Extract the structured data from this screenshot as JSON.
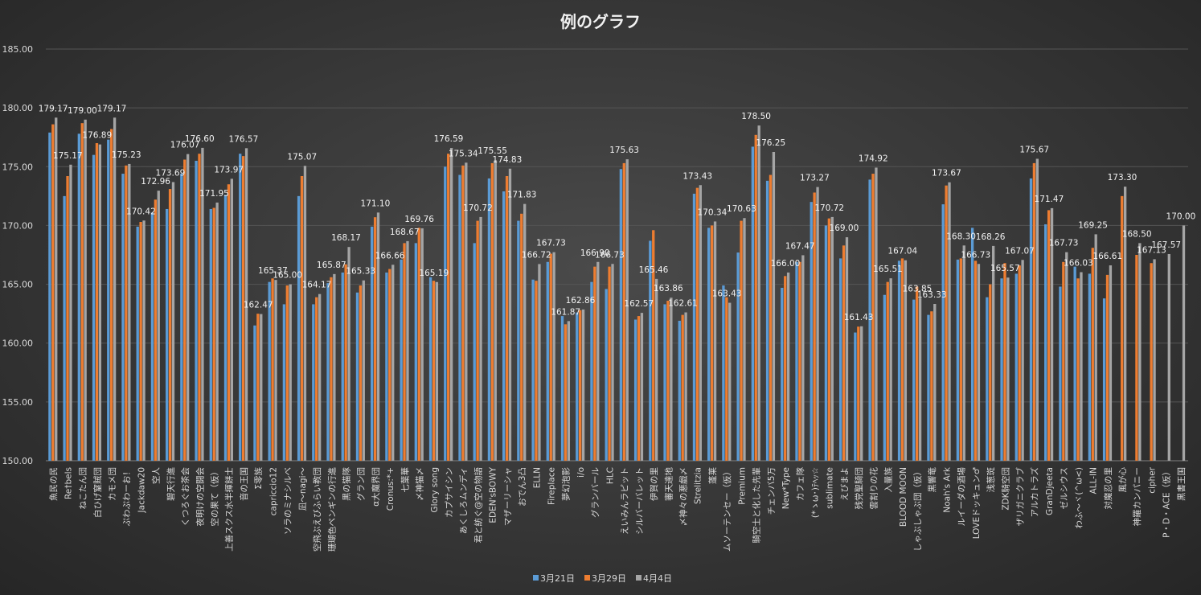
{
  "chart_data": {
    "type": "bar",
    "title": "例のグラフ",
    "xlabel": "",
    "ylabel": "",
    "ylim": [
      150,
      185
    ],
    "yticks": [
      "150.00",
      "155.00",
      "160.00",
      "165.00",
      "170.00",
      "175.00",
      "180.00",
      "185.00"
    ],
    "grid": true,
    "legend_position": "bottom",
    "colors": [
      "#5b9bd5",
      "#ed7d31",
      "#a5a5a5"
    ],
    "categories": [
      "魚民の民",
      "Re†bels",
      "ねこたん団",
      "白ひげ窒賊団",
      "カモメ団",
      "ぷわぷわーお！",
      "Jackdaw20",
      "空人",
      "碧天行進",
      "くつろぐお茶会",
      "夜明けの空闘会",
      "空の果て（仮）",
      "上善スクス水半揮餅士",
      "音の王国",
      "Σ零族",
      "capriccio12",
      "ソラのミナシルベ",
      "凪～nagi～",
      "空飛ぶえびふらい教団",
      "珊瑚色ペンギンの行進",
      "黒の猫隊",
      "グラン団",
      "α大魔界団",
      "Cronus:*+",
      "七葉華",
      "〆神猫〆",
      "Glory song",
      "カプサイシン",
      "あくしろムンディ",
      "君と紡ぐ@空の物語",
      "EDEN'sBOWY",
      "マザーリーシャ",
      "おでん3凸",
      "ELLN",
      "Fireplace",
      "夢幻泡影",
      "i/o",
      "グランバール",
      "HLC",
      "えいみんラピット",
      "シルバーバレット",
      "伊賀の里",
      "審天達地",
      "〆神々の悪戯〆",
      "Strelitzia",
      "蓬莱",
      "ムソーテンセー（仮）",
      "Premium",
      "騎空士と化した先輩",
      "チェンバ5万",
      "New*Type",
      "カフェ隊",
      "(*ゝω･)ﾃﾍｯ☆",
      "sublimate",
      "えびまよ",
      "残党聖騎団",
      "雲割りの花",
      "入量族",
      "BLOOD MOON",
      "しゃぶしゃぶ団（仮）",
      "黒響竜",
      "Noah's Ark",
      "ルイーダの酒場",
      "LOVEドッキュン♂",
      "浅葱斑",
      "ZDK騎空団",
      "ザリガニクラブ",
      "アルカトラズ",
      "GranDjeeta",
      "ゼルシウス",
      "わふ～ヾ(^ω<)",
      "ALL-IN",
      "対魔忍の里",
      "風が心",
      "神羅カンパニー",
      "cipher",
      "P・D・ACE（仮）",
      "黒書王国"
    ],
    "series": [
      {
        "name": "3月21日",
        "values": [
          177.9,
          172.5,
          177.8,
          176.0,
          177.3,
          174.4,
          169.9,
          171.1,
          171.4,
          174.4,
          175.5,
          171.4,
          172.6,
          176.1,
          161.5,
          165.2,
          163.3,
          172.5,
          163.3,
          165.1,
          166.0,
          164.3,
          169.9,
          166.0,
          167.1,
          168.5,
          165.6,
          175.0,
          174.3,
          168.5,
          174.0,
          172.9,
          170.4,
          165.4,
          166.9,
          162.3,
          162.6,
          165.2,
          164.6,
          174.8,
          162.0,
          168.7,
          163.3,
          161.9,
          172.7,
          169.8,
          164.9,
          167.7,
          176.7,
          173.8,
          164.7,
          166.9,
          172.0,
          170.0,
          167.2,
          160.9,
          173.9,
          164.1,
          167.0,
          163.7,
          162.4,
          171.8,
          167.1,
          169.8,
          163.9,
          165.5,
          165.9,
          174.0,
          170.1,
          164.8,
          166.5,
          165.9,
          163.8,
          null,
          null,
          null,
          null,
          null
        ]
      },
      {
        "name": "3月29日",
        "values": [
          178.6,
          174.2,
          178.7,
          177.0,
          178.2,
          175.1,
          170.3,
          172.2,
          173.1,
          175.6,
          176.1,
          171.5,
          173.5,
          175.9,
          162.5,
          165.5,
          164.9,
          174.2,
          163.9,
          165.6,
          166.7,
          164.9,
          170.7,
          166.3,
          168.5,
          169.8,
          165.3,
          176.1,
          175.1,
          170.4,
          175.3,
          174.2,
          171.0,
          165.3,
          167.6,
          161.6,
          162.8,
          166.5,
          166.5,
          175.3,
          162.3,
          169.6,
          163.6,
          162.4,
          173.2,
          170.0,
          163.9,
          170.4,
          177.7,
          174.3,
          165.7,
          166.9,
          172.8,
          170.6,
          168.3,
          161.4,
          174.4,
          165.2,
          167.2,
          164.8,
          162.7,
          173.4,
          167.2,
          167.0,
          165.0,
          166.8,
          166.6,
          175.3,
          171.3,
          166.9,
          165.5,
          168.1,
          165.8,
          172.5,
          167.5,
          166.8,
          null,
          null
        ]
      },
      {
        "name": "4月4日",
        "values": [
          179.17,
          175.17,
          179.0,
          176.89,
          179.17,
          175.23,
          170.42,
          172.96,
          173.69,
          176.07,
          176.6,
          171.95,
          173.97,
          176.57,
          162.47,
          165.37,
          165.0,
          175.07,
          164.17,
          165.87,
          168.17,
          165.33,
          171.1,
          166.66,
          168.67,
          169.76,
          165.19,
          176.59,
          175.34,
          170.72,
          175.55,
          174.83,
          171.83,
          166.72,
          167.73,
          161.87,
          162.86,
          166.9,
          166.73,
          175.63,
          162.57,
          165.46,
          163.86,
          162.61,
          173.43,
          170.34,
          163.43,
          170.63,
          178.5,
          176.25,
          166.0,
          167.47,
          173.27,
          170.72,
          169.0,
          161.43,
          174.92,
          165.51,
          167.04,
          163.85,
          163.33,
          173.67,
          168.3,
          166.73,
          168.26,
          165.57,
          167.07,
          175.67,
          171.47,
          167.73,
          166.03,
          169.25,
          166.61,
          173.3,
          168.5,
          167.13,
          167.57,
          170.0
        ]
      }
    ],
    "value_labels": [
      {
        "i": 0,
        "text": "179.17"
      },
      {
        "i": 1,
        "text": "175.17"
      },
      {
        "i": 2,
        "text": "179.00"
      },
      {
        "i": 3,
        "text": "176.89"
      },
      {
        "i": 4,
        "text": "179.17"
      },
      {
        "i": 5,
        "text": "175.23"
      },
      {
        "i": 6,
        "text": "170.42"
      },
      {
        "i": 7,
        "text": "172.96"
      },
      {
        "i": 8,
        "text": "173.69"
      },
      {
        "i": 9,
        "text": "176.07"
      },
      {
        "i": 10,
        "text": "176.60"
      },
      {
        "i": 11,
        "text": "171.95"
      },
      {
        "i": 12,
        "text": "173.97"
      },
      {
        "i": 13,
        "text": "176.57"
      },
      {
        "i": 14,
        "text": "162.47"
      },
      {
        "i": 15,
        "text": "165.37"
      },
      {
        "i": 16,
        "text": "165.00"
      },
      {
        "i": 17,
        "text": "175.07"
      },
      {
        "i": 18,
        "text": "164.17"
      },
      {
        "i": 19,
        "text": "165.87"
      },
      {
        "i": 20,
        "text": "168.17"
      },
      {
        "i": 21,
        "text": "165.33"
      },
      {
        "i": 22,
        "text": "171.10"
      },
      {
        "i": 23,
        "text": "166.66"
      },
      {
        "i": 24,
        "text": "168.67"
      },
      {
        "i": 25,
        "text": "169.76"
      },
      {
        "i": 26,
        "text": "165.19"
      },
      {
        "i": 27,
        "text": "176.59"
      },
      {
        "i": 28,
        "text": "175.34"
      },
      {
        "i": 29,
        "text": "170.72"
      },
      {
        "i": 30,
        "text": "175.55"
      },
      {
        "i": 31,
        "text": "174.83"
      },
      {
        "i": 32,
        "text": "171.83"
      },
      {
        "i": 33,
        "text": "166.72"
      },
      {
        "i": 34,
        "text": "167.73"
      },
      {
        "i": 35,
        "text": "161.87"
      },
      {
        "i": 36,
        "text": "162.86"
      },
      {
        "i": 37,
        "text": "166.90"
      },
      {
        "i": 38,
        "text": "166.73"
      },
      {
        "i": 39,
        "text": "175.63"
      },
      {
        "i": 40,
        "text": "162.57"
      },
      {
        "i": 41,
        "text": "165.46"
      },
      {
        "i": 42,
        "text": "163.86"
      },
      {
        "i": 43,
        "text": "162.61"
      },
      {
        "i": 44,
        "text": "173.43"
      },
      {
        "i": 45,
        "text": "170.34"
      },
      {
        "i": 46,
        "text": "163.43"
      },
      {
        "i": 47,
        "text": "170.63"
      },
      {
        "i": 48,
        "text": "178.50"
      },
      {
        "i": 49,
        "text": "176.25"
      },
      {
        "i": 50,
        "text": "166.00"
      },
      {
        "i": 51,
        "text": "167.47"
      },
      {
        "i": 52,
        "text": "173.27"
      },
      {
        "i": 53,
        "text": "170.72"
      },
      {
        "i": 54,
        "text": "169.00"
      },
      {
        "i": 55,
        "text": "161.43"
      },
      {
        "i": 56,
        "text": "174.92"
      },
      {
        "i": 57,
        "text": "165.51"
      },
      {
        "i": 58,
        "text": "167.04"
      },
      {
        "i": 59,
        "text": "163.85"
      },
      {
        "i": 60,
        "text": "163.33"
      },
      {
        "i": 61,
        "text": "173.67"
      },
      {
        "i": 62,
        "text": "168.30"
      },
      {
        "i": 63,
        "text": "166.73"
      },
      {
        "i": 64,
        "text": "168.26"
      },
      {
        "i": 65,
        "text": "165.57"
      },
      {
        "i": 66,
        "text": "167.07"
      },
      {
        "i": 67,
        "text": "175.67"
      },
      {
        "i": 68,
        "text": "171.47"
      },
      {
        "i": 69,
        "text": "167.73"
      },
      {
        "i": 70,
        "text": "166.03"
      },
      {
        "i": 71,
        "text": "169.25"
      },
      {
        "i": 72,
        "text": "166.61"
      },
      {
        "i": 73,
        "text": "173.30"
      },
      {
        "i": 74,
        "text": "168.50"
      },
      {
        "i": 75,
        "text": "167.13"
      },
      {
        "i": 76,
        "text": "167.57"
      },
      {
        "i": 77,
        "text": "170.00"
      }
    ]
  }
}
